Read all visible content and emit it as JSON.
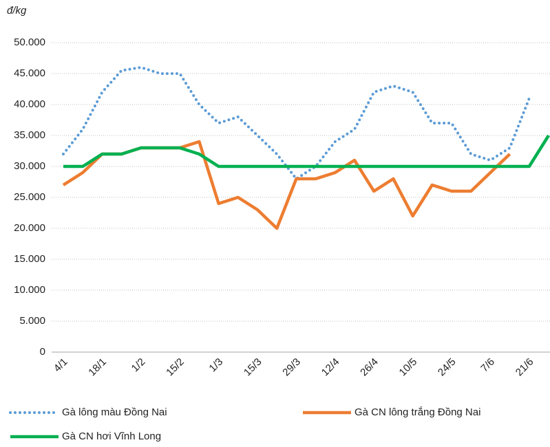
{
  "chart_data": {
    "type": "line",
    "y_label": "đ/kg",
    "categories": [
      "4/1",
      null,
      "18/1",
      null,
      "1/2",
      null,
      "15/2",
      null,
      "1/3",
      null,
      "15/3",
      null,
      "29/3",
      null,
      "12/4",
      null,
      "26/4",
      null,
      "10/5",
      null,
      "24/5",
      null,
      "7/6",
      null,
      "21/6",
      null
    ],
    "series": [
      {
        "name": "Gà lông màu Đồng Nai",
        "color": "#5b9bd5",
        "style": "dotted",
        "values": [
          32000,
          36000,
          42000,
          45500,
          46000,
          45000,
          45000,
          40000,
          37000,
          38000,
          35000,
          32000,
          28000,
          30000,
          34000,
          36000,
          42000,
          43000,
          42000,
          37000,
          37000,
          32000,
          31000,
          33000,
          41000,
          null
        ]
      },
      {
        "name": "Gà CN lông trắng Đồng Nai",
        "color": "#ed7d31",
        "style": "solid",
        "values": [
          27000,
          29000,
          32000,
          32000,
          33000,
          33000,
          33000,
          34000,
          24000,
          25000,
          23000,
          20000,
          28000,
          28000,
          29000,
          31000,
          26000,
          28000,
          22000,
          27000,
          26000,
          26000,
          29000,
          32000,
          null,
          null
        ]
      },
      {
        "name": "Gà CN hơi Vĩnh Long",
        "color": "#00b050",
        "style": "solid",
        "values": [
          30000,
          30000,
          32000,
          32000,
          33000,
          33000,
          33000,
          32000,
          30000,
          30000,
          30000,
          30000,
          30000,
          30000,
          30000,
          30000,
          30000,
          30000,
          30000,
          30000,
          30000,
          30000,
          30000,
          30000,
          30000,
          35000
        ]
      }
    ],
    "ylim": [
      0,
      50000
    ],
    "yticks": [
      0,
      {
        "value": 5000,
        "label": "5.000"
      },
      {
        "value": 10000,
        "label": "10.000"
      },
      {
        "value": 15000,
        "label": "15.000"
      },
      {
        "value": 20000,
        "label": "20.000"
      },
      {
        "value": 25000,
        "label": "25.000"
      },
      {
        "value": 30000,
        "label": "30.000"
      },
      {
        "value": 35000,
        "label": "35.000"
      },
      {
        "value": 40000,
        "label": "40.000"
      },
      {
        "value": 45000,
        "label": "45.000"
      },
      {
        "value": 50000,
        "label": "50.000"
      }
    ],
    "grid": true,
    "legend": "bottom"
  }
}
